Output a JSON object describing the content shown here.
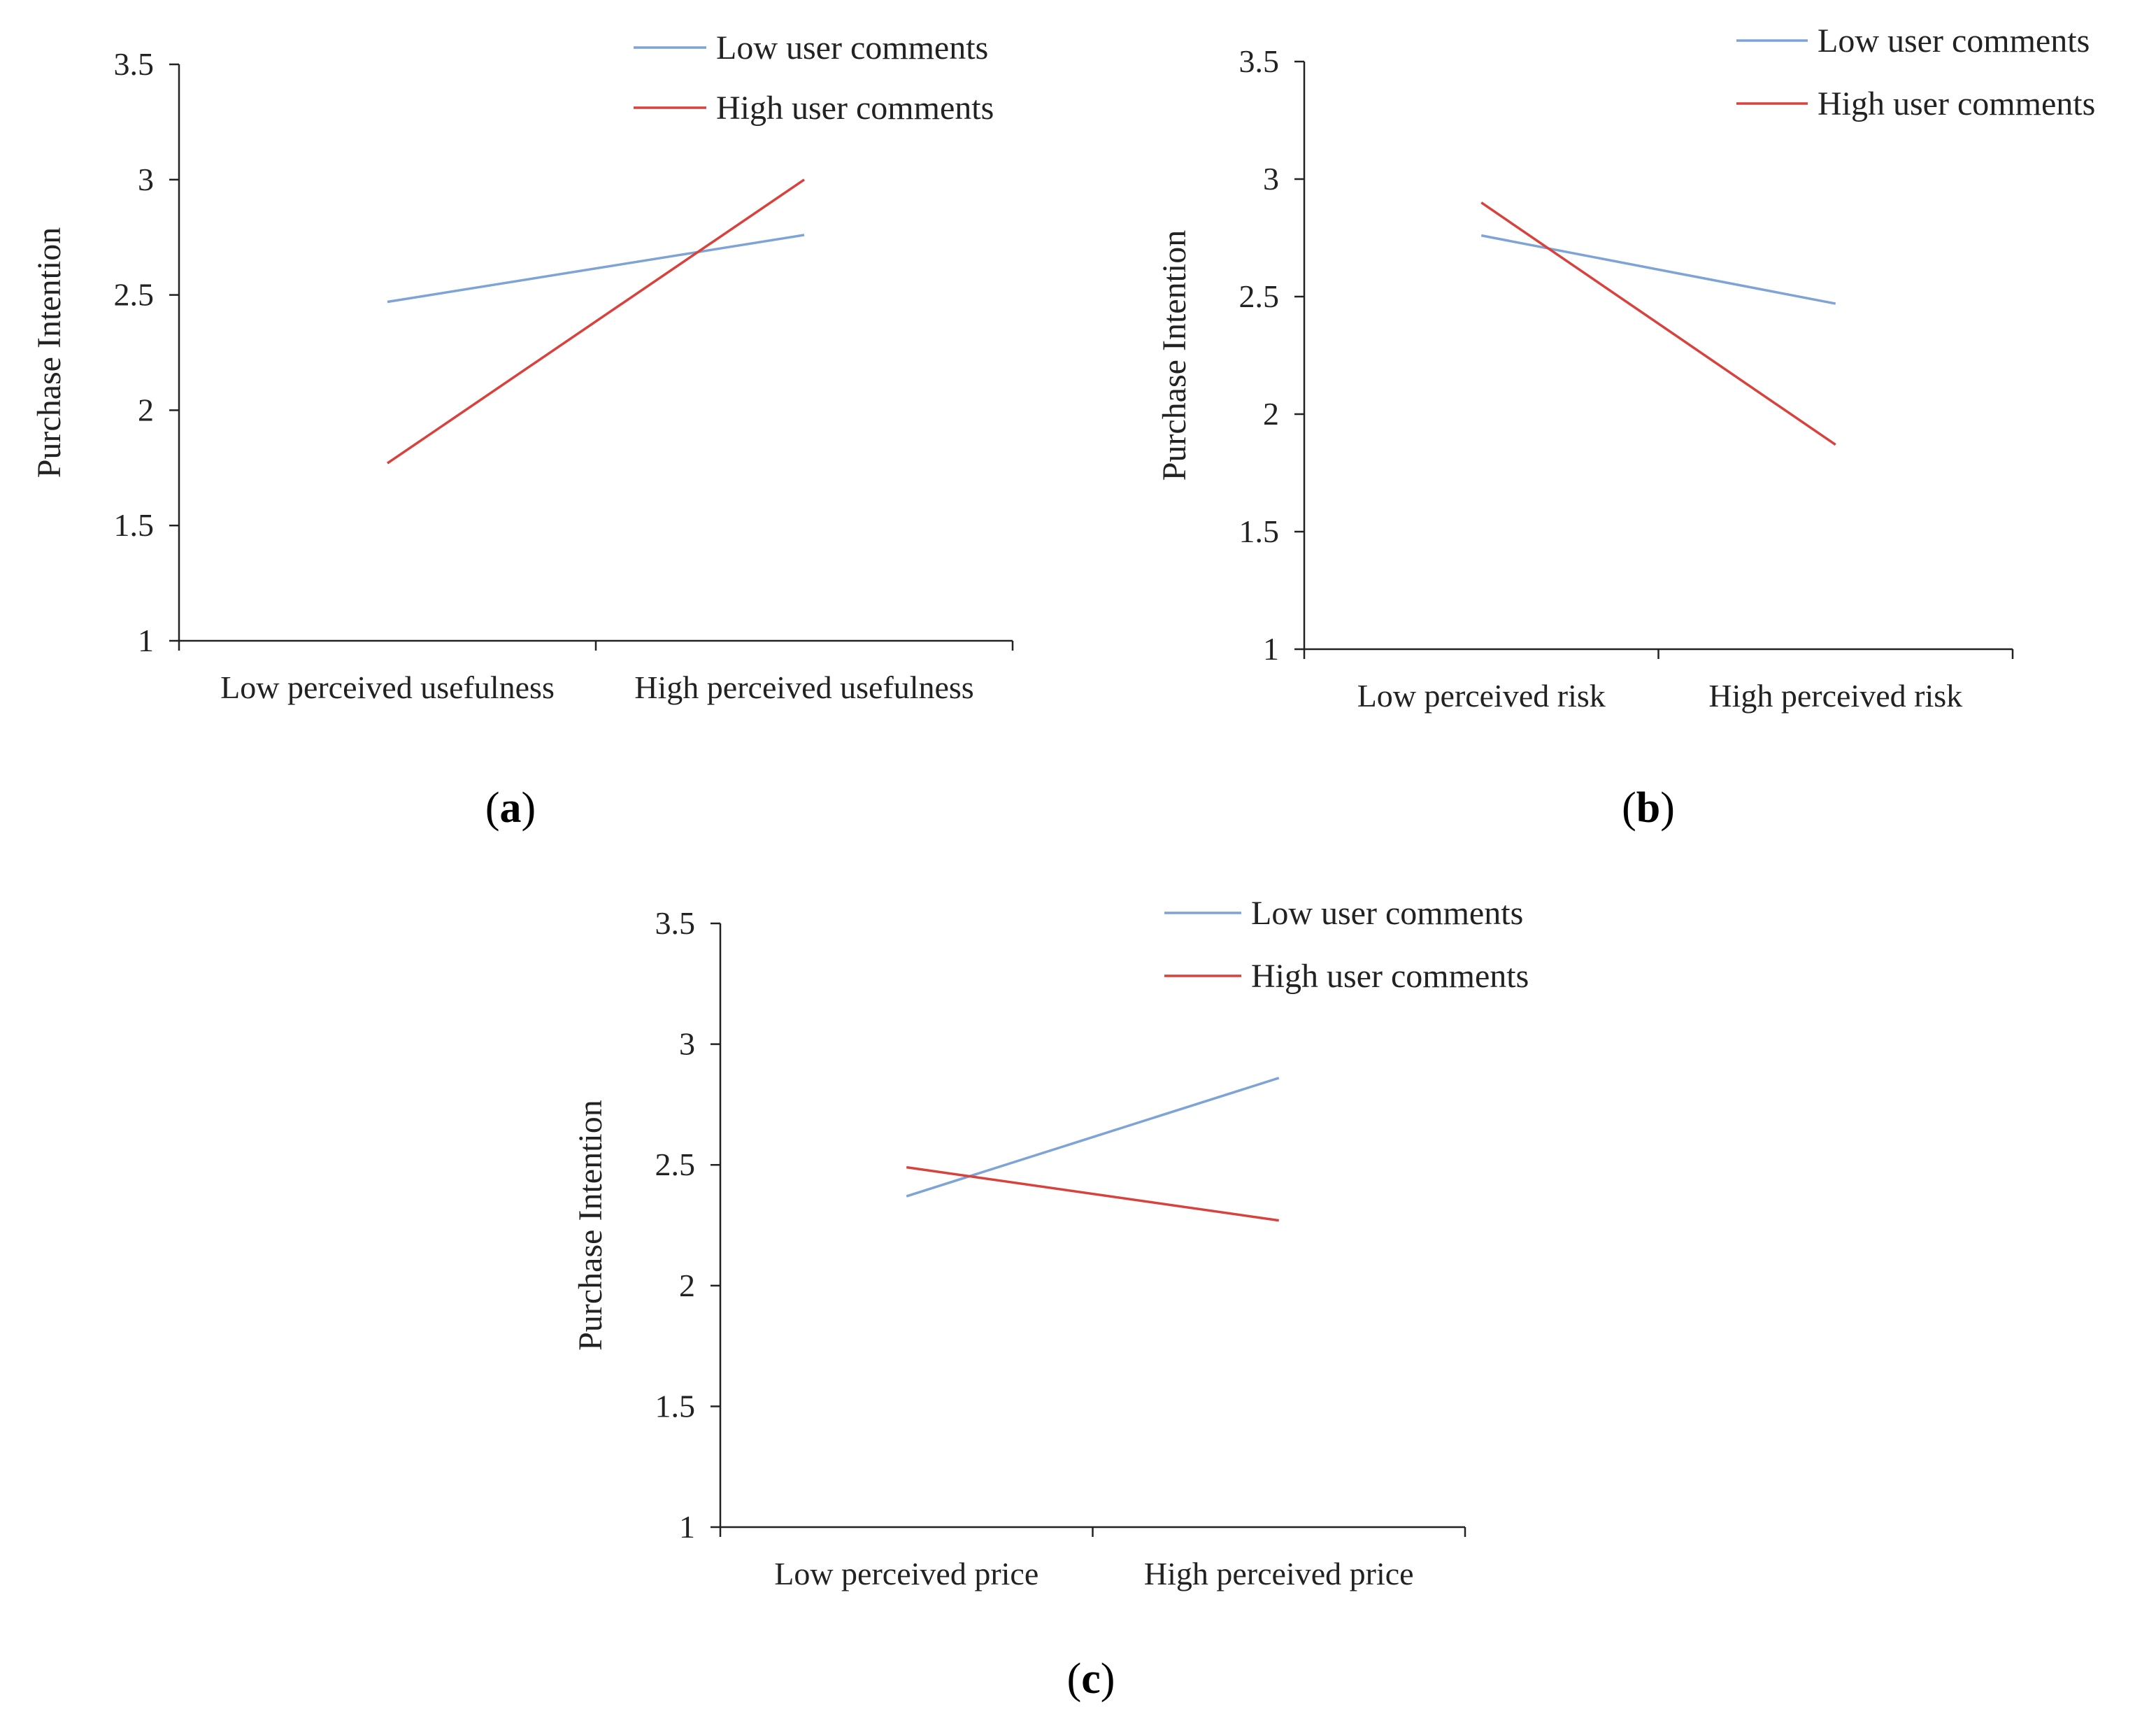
{
  "colors": {
    "low_user_comments": "#7ea3d6",
    "high_user_comments": "#d9413c",
    "axis": "#222222"
  },
  "chart_data": [
    {
      "type": "line",
      "panel": "a",
      "caption": "(a)",
      "caption_letter": "a",
      "title": "",
      "xlabel": "",
      "ylabel": "Purchase Intention",
      "categories": [
        "Low perceived usefulness",
        "High perceived usefulness"
      ],
      "ylim": [
        1,
        3.5
      ],
      "yticks": [
        "1",
        "1.5",
        "2",
        "2.5",
        "3",
        "3.5"
      ],
      "legend_position": "top-right",
      "series": [
        {
          "name": "Low user comments",
          "values": [
            2.47,
            2.76
          ]
        },
        {
          "name": "High user comments",
          "values": [
            1.77,
            3.0
          ]
        }
      ]
    },
    {
      "type": "line",
      "panel": "b",
      "caption": "(b)",
      "caption_letter": "b",
      "title": "",
      "xlabel": "",
      "ylabel": "Purchase Intention",
      "categories": [
        "Low perceived risk",
        "High perceived risk"
      ],
      "ylim": [
        1,
        3.5
      ],
      "yticks": [
        "1",
        "1.5",
        "2",
        "2.5",
        "3",
        "3.5"
      ],
      "legend_position": "top-right",
      "series": [
        {
          "name": "Low user comments",
          "values": [
            2.76,
            2.47
          ]
        },
        {
          "name": "High user comments",
          "values": [
            2.9,
            1.87
          ]
        }
      ]
    },
    {
      "type": "line",
      "panel": "c",
      "caption": "(c)",
      "caption_letter": "c",
      "title": "",
      "xlabel": "",
      "ylabel": "Purchase Intention",
      "categories": [
        "Low perceived price",
        "High perceived price"
      ],
      "ylim": [
        1,
        3.5
      ],
      "yticks": [
        "1",
        "1.5",
        "2",
        "2.5",
        "3",
        "3.5"
      ],
      "legend_position": "top-right",
      "series": [
        {
          "name": "Low user comments",
          "values": [
            2.37,
            2.86
          ]
        },
        {
          "name": "High user comments",
          "values": [
            2.49,
            2.27
          ]
        }
      ]
    }
  ]
}
